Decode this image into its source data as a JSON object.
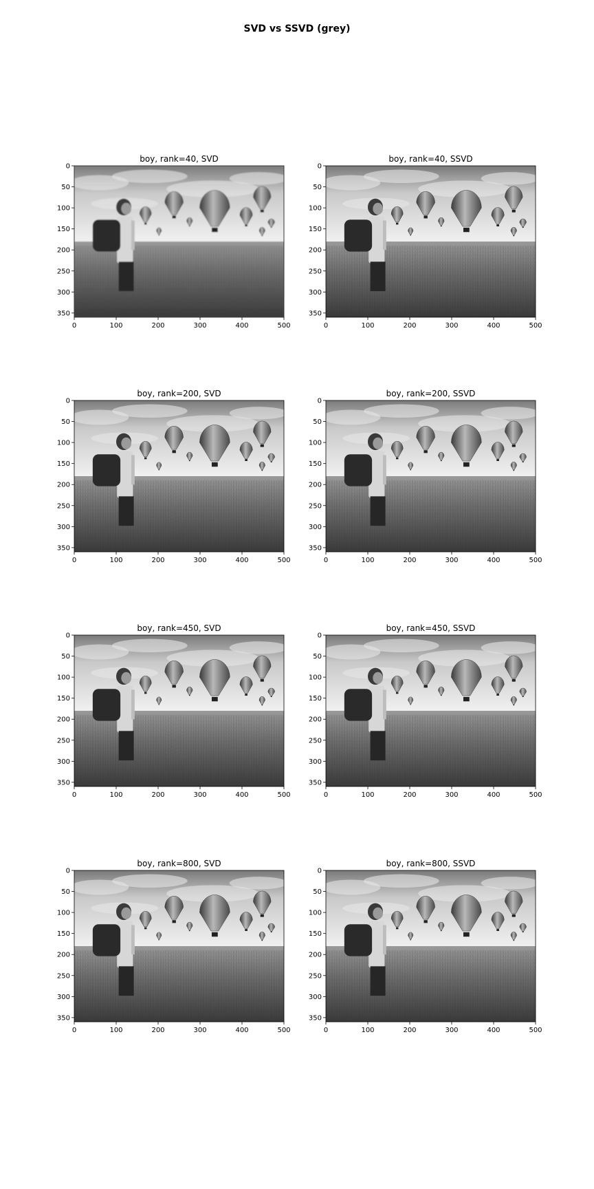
{
  "figure": {
    "title": "SVD vs SSVD (grey)"
  },
  "chart_data": [
    {
      "type": "image",
      "title": "boy, rank=40, SVD",
      "image": "boy",
      "rank": 40,
      "method": "SVD",
      "xlim": [
        0,
        500
      ],
      "ylim": [
        360,
        0
      ],
      "x_ticks": [
        0,
        100,
        200,
        300,
        400,
        500
      ],
      "y_ticks": [
        0,
        50,
        100,
        150,
        200,
        250,
        300,
        350
      ],
      "grid": false
    },
    {
      "type": "image",
      "title": "boy, rank=40, SSVD",
      "image": "boy",
      "rank": 40,
      "method": "SSVD",
      "xlim": [
        0,
        500
      ],
      "ylim": [
        360,
        0
      ],
      "x_ticks": [
        0,
        100,
        200,
        300,
        400,
        500
      ],
      "y_ticks": [
        0,
        50,
        100,
        150,
        200,
        250,
        300,
        350
      ],
      "grid": false
    },
    {
      "type": "image",
      "title": "boy, rank=200, SVD",
      "image": "boy",
      "rank": 200,
      "method": "SVD",
      "xlim": [
        0,
        500
      ],
      "ylim": [
        360,
        0
      ],
      "x_ticks": [
        0,
        100,
        200,
        300,
        400,
        500
      ],
      "y_ticks": [
        0,
        50,
        100,
        150,
        200,
        250,
        300,
        350
      ],
      "grid": false
    },
    {
      "type": "image",
      "title": "boy, rank=200, SSVD",
      "image": "boy",
      "rank": 200,
      "method": "SSVD",
      "xlim": [
        0,
        500
      ],
      "ylim": [
        360,
        0
      ],
      "x_ticks": [
        0,
        100,
        200,
        300,
        400,
        500
      ],
      "y_ticks": [
        0,
        50,
        100,
        150,
        200,
        250,
        300,
        350
      ],
      "grid": false
    },
    {
      "type": "image",
      "title": "boy, rank=450, SVD",
      "image": "boy",
      "rank": 450,
      "method": "SVD",
      "xlim": [
        0,
        500
      ],
      "ylim": [
        360,
        0
      ],
      "x_ticks": [
        0,
        100,
        200,
        300,
        400,
        500
      ],
      "y_ticks": [
        0,
        50,
        100,
        150,
        200,
        250,
        300,
        350
      ],
      "grid": false
    },
    {
      "type": "image",
      "title": "boy, rank=450, SSVD",
      "image": "boy",
      "rank": 450,
      "method": "SSVD",
      "xlim": [
        0,
        500
      ],
      "ylim": [
        360,
        0
      ],
      "x_ticks": [
        0,
        100,
        200,
        300,
        400,
        500
      ],
      "y_ticks": [
        0,
        50,
        100,
        150,
        200,
        250,
        300,
        350
      ],
      "grid": false
    },
    {
      "type": "image",
      "title": "boy, rank=800, SVD",
      "image": "boy",
      "rank": 800,
      "method": "SVD",
      "xlim": [
        0,
        500
      ],
      "ylim": [
        360,
        0
      ],
      "x_ticks": [
        0,
        100,
        200,
        300,
        400,
        500
      ],
      "y_ticks": [
        0,
        50,
        100,
        150,
        200,
        250,
        300,
        350
      ],
      "grid": false
    },
    {
      "type": "image",
      "title": "boy, rank=800, SSVD",
      "image": "boy",
      "rank": 800,
      "method": "SSVD",
      "xlim": [
        0,
        500
      ],
      "ylim": [
        360,
        0
      ],
      "x_ticks": [
        0,
        100,
        200,
        300,
        400,
        500
      ],
      "y_ticks": [
        0,
        50,
        100,
        150,
        200,
        250,
        300,
        350
      ],
      "grid": false
    }
  ]
}
